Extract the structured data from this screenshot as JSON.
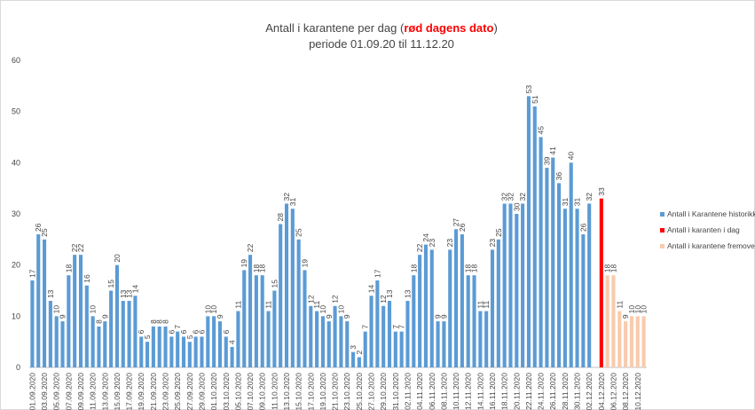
{
  "chart_data": {
    "type": "bar",
    "title": "Antall i karantene per dag (",
    "title_highlight": "rød dagens dato",
    "title_end": ")",
    "subtitle": "periode 01.09.20 til 11.12.20",
    "categories": [
      "01.09.2020",
      null,
      "03.09.2020",
      null,
      "05.09.2020",
      null,
      "07.09.2020",
      null,
      "09.09.2020",
      null,
      "11.09.2020",
      null,
      "13.09.2020",
      null,
      "15.09.2020",
      null,
      "17.09.2020",
      null,
      "19.09.2020",
      null,
      "21.09.2020",
      null,
      "23.09.2020",
      null,
      "25.09.2020",
      null,
      "27.09.2020",
      null,
      "29.09.2020",
      null,
      "01.10.2020",
      null,
      "03.10.2020",
      null,
      "05.10.2020",
      null,
      "07.10.2020",
      null,
      "09.10.2020",
      null,
      "11.10.2020",
      null,
      "13.10.2020",
      null,
      "15.10.2020",
      null,
      "17.10.2020",
      null,
      "19.10.2020",
      null,
      "21.10.2020",
      null,
      "23.10.2020",
      null,
      "25.10.2020",
      null,
      "27.10.2020",
      null,
      "29.10.2020",
      null,
      "31.10.2020",
      null,
      "02.11.2020",
      null,
      "04.11.2020",
      null,
      "06.11.2020",
      null,
      "08.11.2020",
      null,
      "10.11.2020",
      null,
      "12.11.2020",
      null,
      "14.11.2020",
      null,
      "16.11.2020",
      null,
      "18.11.2020",
      null,
      "20.11.2020",
      null,
      "22.11.2020",
      null,
      "24.11.2020",
      null,
      "26.11.2020",
      null,
      "28.11.2020",
      null,
      "30.11.2020",
      null,
      "02.12.2020",
      null,
      "04.12.2020",
      null,
      "06.12.2020",
      null,
      "08.12.2020",
      null,
      "10.12.2020",
      null
    ],
    "series": [
      {
        "name": "Antall i Karantene historikk",
        "color": "#5b9bd5",
        "values": [
          17,
          26,
          25,
          13,
          10,
          9,
          18,
          22,
          22,
          16,
          10,
          8,
          9,
          15,
          20,
          13,
          13,
          14,
          6,
          5,
          8,
          8,
          8,
          6,
          7,
          6,
          5,
          6,
          6,
          10,
          10,
          9,
          6,
          4,
          11,
          19,
          22,
          18,
          18,
          11,
          15,
          28,
          32,
          31,
          25,
          19,
          12,
          11,
          10,
          9,
          12,
          10,
          9,
          3,
          2,
          7,
          14,
          17,
          12,
          13,
          7,
          7,
          13,
          18,
          22,
          24,
          23,
          9,
          9,
          23,
          27,
          26,
          18,
          18,
          11,
          11,
          23,
          25,
          32,
          32,
          30,
          32,
          53,
          51,
          45,
          39,
          41,
          36,
          31,
          40,
          31,
          26,
          32,
          null,
          null,
          null,
          null,
          null,
          null,
          null,
          null,
          null
        ]
      },
      {
        "name": "Antall i karanten i dag",
        "color": "#ff0000",
        "values": [
          null,
          null,
          null,
          null,
          null,
          null,
          null,
          null,
          null,
          null,
          null,
          null,
          null,
          null,
          null,
          null,
          null,
          null,
          null,
          null,
          null,
          null,
          null,
          null,
          null,
          null,
          null,
          null,
          null,
          null,
          null,
          null,
          null,
          null,
          null,
          null,
          null,
          null,
          null,
          null,
          null,
          null,
          null,
          null,
          null,
          null,
          null,
          null,
          null,
          null,
          null,
          null,
          null,
          null,
          null,
          null,
          null,
          null,
          null,
          null,
          null,
          null,
          null,
          null,
          null,
          null,
          null,
          null,
          null,
          null,
          null,
          null,
          null,
          null,
          null,
          null,
          null,
          null,
          null,
          null,
          null,
          null,
          null,
          null,
          null,
          null,
          null,
          null,
          null,
          null,
          null,
          null,
          null,
          null,
          33,
          null,
          null,
          null,
          null,
          null,
          null,
          null
        ]
      },
      {
        "name": "Antall i karantene fremover",
        "color": "#f8cbad",
        "values": [
          null,
          null,
          null,
          null,
          null,
          null,
          null,
          null,
          null,
          null,
          null,
          null,
          null,
          null,
          null,
          null,
          null,
          null,
          null,
          null,
          null,
          null,
          null,
          null,
          null,
          null,
          null,
          null,
          null,
          null,
          null,
          null,
          null,
          null,
          null,
          null,
          null,
          null,
          null,
          null,
          null,
          null,
          null,
          null,
          null,
          null,
          null,
          null,
          null,
          null,
          null,
          null,
          null,
          null,
          null,
          null,
          null,
          null,
          null,
          null,
          null,
          null,
          null,
          null,
          null,
          null,
          null,
          null,
          null,
          null,
          null,
          null,
          null,
          null,
          null,
          null,
          null,
          null,
          null,
          null,
          null,
          null,
          null,
          null,
          null,
          null,
          null,
          null,
          null,
          null,
          null,
          null,
          null,
          null,
          null,
          18,
          18,
          11,
          9,
          10,
          10,
          10
        ]
      }
    ],
    "ylim": [
      0,
      60
    ],
    "yticks": [
      0,
      10,
      20,
      30,
      40,
      50,
      60
    ],
    "grid": false,
    "legend": "right"
  }
}
